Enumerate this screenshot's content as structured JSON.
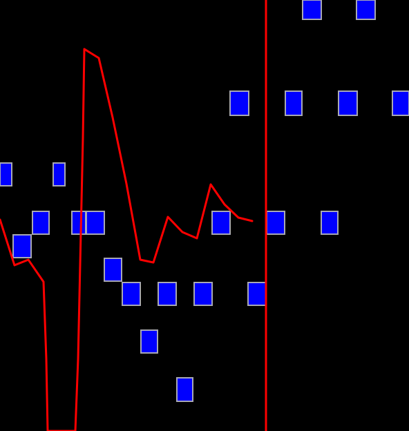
{
  "colors": {
    "background": "#000000",
    "block_fill": "#0000ff",
    "block_border": "#a8a8b4",
    "path": "#ff0000",
    "divider": "#ff0000"
  },
  "icons": {
    "block": "blue-block-icon"
  }
}
